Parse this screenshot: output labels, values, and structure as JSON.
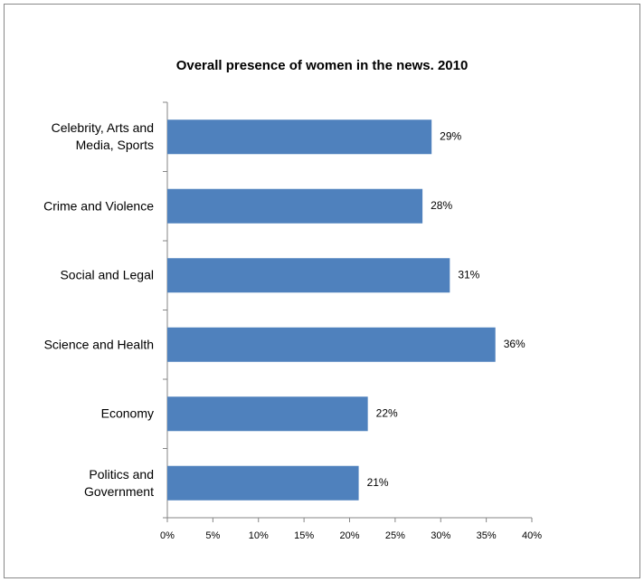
{
  "chart_data": {
    "type": "bar",
    "orientation": "horizontal",
    "title": "Overall presence of women in the news. 2010",
    "categories": [
      "Celebrity, Arts and Media, Sports",
      "Crime and Violence",
      "Social and Legal",
      "Science and Health",
      "Economy",
      "Politics and Government"
    ],
    "values": [
      29,
      28,
      31,
      36,
      22,
      21
    ],
    "value_labels": [
      "29%",
      "28%",
      "31%",
      "36%",
      "22%",
      "21%"
    ],
    "color": "#4f81bd",
    "xlim": [
      0,
      40
    ],
    "xticks": [
      {
        "value": 0,
        "label": "0%"
      },
      {
        "value": 5,
        "label": "5%"
      },
      {
        "value": 10,
        "label": "10%"
      },
      {
        "value": 15,
        "label": "15%"
      },
      {
        "value": 20,
        "label": "20%"
      },
      {
        "value": 25,
        "label": "25%"
      },
      {
        "value": 30,
        "label": "30%"
      },
      {
        "value": 35,
        "label": "35%"
      },
      {
        "value": 40,
        "label": "40%"
      }
    ]
  }
}
